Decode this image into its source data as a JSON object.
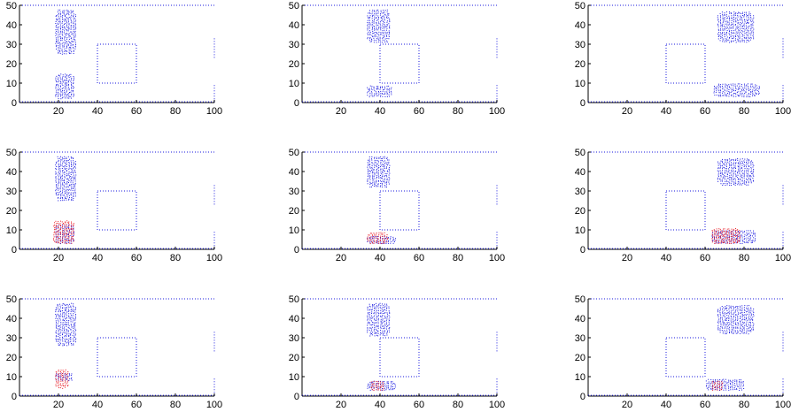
{
  "figure": {
    "colors": {
      "particles_blue": "#1a1adf",
      "particles_red": "#e8141e",
      "axes": "#000000"
    }
  },
  "chart_data": [
    {
      "type": "scatter",
      "row": 0,
      "col": 0,
      "ylim": [
        0,
        50
      ],
      "yticks": [
        "0",
        "10",
        "20",
        "30",
        "40",
        "50"
      ],
      "xticks": [
        "20",
        "40",
        "60",
        "80",
        "100"
      ],
      "clusters": [
        {
          "color": "blue",
          "x": [
            18,
            29
          ],
          "y": [
            25,
            48
          ]
        },
        {
          "color": "blue",
          "x": [
            18,
            28
          ],
          "y": [
            2,
            15
          ]
        }
      ]
    },
    {
      "type": "scatter",
      "row": 0,
      "col": 1,
      "ylim": [
        0,
        50
      ],
      "yticks": [
        "0",
        "10",
        "20",
        "30",
        "40",
        "50"
      ],
      "xticks": [
        "20",
        "40",
        "60",
        "80",
        "100"
      ],
      "clusters": [
        {
          "color": "blue",
          "x": [
            33,
            45
          ],
          "y": [
            31,
            48
          ]
        },
        {
          "color": "blue",
          "x": [
            33,
            46
          ],
          "y": [
            3,
            9
          ]
        }
      ]
    },
    {
      "type": "scatter",
      "row": 0,
      "col": 2,
      "ylim": [
        0,
        50
      ],
      "yticks": [
        "0",
        "10",
        "20",
        "30",
        "40",
        "50"
      ],
      "xticks": [
        "20",
        "40",
        "60",
        "80",
        "100"
      ],
      "clusters": [
        {
          "color": "blue",
          "x": [
            66,
            85
          ],
          "y": [
            31,
            47
          ]
        },
        {
          "color": "blue",
          "x": [
            64,
            88
          ],
          "y": [
            3,
            10
          ]
        }
      ]
    },
    {
      "type": "scatter",
      "row": 1,
      "col": 0,
      "ylim": [
        0,
        50
      ],
      "yticks": [
        "0",
        "10",
        "20",
        "30",
        "40",
        "50"
      ],
      "xticks": [
        "20",
        "40",
        "60",
        "80",
        "100"
      ],
      "clusters": [
        {
          "color": "blue",
          "x": [
            18,
            29
          ],
          "y": [
            25,
            48
          ]
        },
        {
          "color": "blue",
          "x": [
            18,
            28
          ],
          "y": [
            3,
            13
          ]
        },
        {
          "color": "red",
          "x": [
            17,
            28
          ],
          "y": [
            3,
            15
          ]
        }
      ]
    },
    {
      "type": "scatter",
      "row": 1,
      "col": 1,
      "ylim": [
        0,
        50
      ],
      "yticks": [
        "0",
        "10",
        "20",
        "30",
        "40",
        "50"
      ],
      "xticks": [
        "20",
        "40",
        "60",
        "80",
        "100"
      ],
      "clusters": [
        {
          "color": "blue",
          "x": [
            33,
            45
          ],
          "y": [
            32,
            48
          ]
        },
        {
          "color": "blue",
          "x": [
            33,
            48
          ],
          "y": [
            3,
            7
          ]
        },
        {
          "color": "red",
          "x": [
            33,
            44
          ],
          "y": [
            3,
            9
          ]
        }
      ]
    },
    {
      "type": "scatter",
      "row": 1,
      "col": 2,
      "ylim": [
        0,
        50
      ],
      "yticks": [
        "0",
        "10",
        "20",
        "30",
        "40",
        "50"
      ],
      "xticks": [
        "20",
        "40",
        "60",
        "80",
        "100"
      ],
      "clusters": [
        {
          "color": "blue",
          "x": [
            66,
            85
          ],
          "y": [
            33,
            47
          ]
        },
        {
          "color": "blue",
          "x": [
            63,
            86
          ],
          "y": [
            3,
            10
          ]
        },
        {
          "color": "red",
          "x": [
            63,
            78
          ],
          "y": [
            3,
            11
          ]
        }
      ]
    },
    {
      "type": "scatter",
      "row": 2,
      "col": 0,
      "ylim": [
        0,
        50
      ],
      "yticks": [
        "0",
        "10",
        "20",
        "30",
        "40",
        "50"
      ],
      "xticks": [
        "20",
        "40",
        "60",
        "80",
        "100"
      ],
      "clusters": [
        {
          "color": "blue",
          "x": [
            18,
            29
          ],
          "y": [
            26,
            48
          ]
        },
        {
          "color": "blue",
          "x": [
            18,
            27
          ],
          "y": [
            8,
            12
          ]
        },
        {
          "color": "red",
          "x": [
            18,
            25
          ],
          "y": [
            4,
            14
          ]
        }
      ]
    },
    {
      "type": "scatter",
      "row": 2,
      "col": 1,
      "ylim": [
        0,
        50
      ],
      "yticks": [
        "0",
        "10",
        "20",
        "30",
        "40",
        "50"
      ],
      "xticks": [
        "20",
        "40",
        "60",
        "80",
        "100"
      ],
      "clusters": [
        {
          "color": "blue",
          "x": [
            33,
            45
          ],
          "y": [
            31,
            48
          ]
        },
        {
          "color": "blue",
          "x": [
            33,
            48
          ],
          "y": [
            3,
            8
          ]
        },
        {
          "color": "red",
          "x": [
            35,
            42
          ],
          "y": [
            3,
            8
          ]
        }
      ]
    },
    {
      "type": "scatter",
      "row": 2,
      "col": 2,
      "ylim": [
        0,
        50
      ],
      "yticks": [
        "0",
        "10",
        "20",
        "30",
        "40",
        "50"
      ],
      "xticks": [
        "20",
        "40",
        "60",
        "80",
        "100"
      ],
      "clusters": [
        {
          "color": "blue",
          "x": [
            66,
            85
          ],
          "y": [
            32,
            47
          ]
        },
        {
          "color": "blue",
          "x": [
            60,
            80
          ],
          "y": [
            3,
            9
          ]
        },
        {
          "color": "red",
          "x": [
            63,
            69
          ],
          "y": [
            3,
            8
          ]
        }
      ]
    }
  ]
}
